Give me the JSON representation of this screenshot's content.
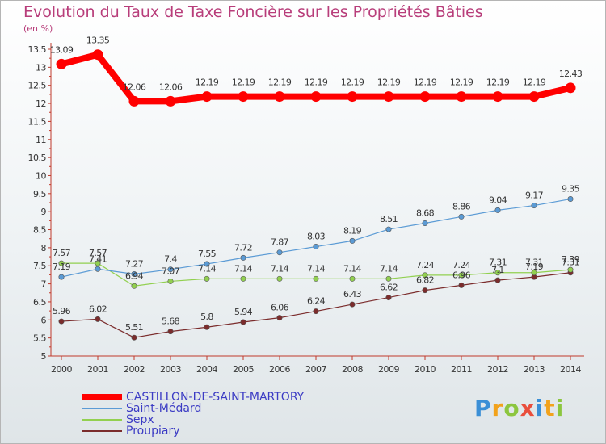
{
  "chart_data": {
    "type": "line",
    "title": "Evolution du Taux de Taxe Foncière sur les Propriétés Bâties",
    "ylabel": "(en %)",
    "xlabel": "",
    "x": [
      "2000",
      "2001",
      "2002",
      "2003",
      "2004",
      "2005",
      "2006",
      "2007",
      "2008",
      "2009",
      "2010",
      "2011",
      "2012",
      "2013",
      "2014"
    ],
    "ylim": [
      5,
      13.5
    ],
    "yticks": [
      "5",
      "5.5",
      "6",
      "6.5",
      "7",
      "7.5",
      "8",
      "8.5",
      "9",
      "9.5",
      "10",
      "10.5",
      "11",
      "11.5",
      "12",
      "12.5",
      "13",
      "13.5"
    ],
    "grid": false,
    "legend_position": "bottom-left",
    "series": [
      {
        "name": "CASTILLON-DE-SAINT-MARTORY",
        "color": "#ff0000",
        "values": [
          13.09,
          13.35,
          12.06,
          12.06,
          12.19,
          12.19,
          12.19,
          12.19,
          12.19,
          12.19,
          12.19,
          12.19,
          12.19,
          12.19,
          12.43
        ],
        "labels": [
          "13.09",
          "13.35",
          "12.06",
          "12.06",
          "12.19",
          "12.19",
          "12.19",
          "12.19",
          "12.19",
          "12.19",
          "12.19",
          "12.19",
          "12.19",
          "12.19",
          "12.43"
        ]
      },
      {
        "name": "Saint-Médard",
        "color": "#5b9bd5",
        "values": [
          7.19,
          7.41,
          7.27,
          7.4,
          7.55,
          7.72,
          7.87,
          8.03,
          8.19,
          8.51,
          8.68,
          8.86,
          9.04,
          9.17,
          9.35
        ],
        "labels": [
          "7.19",
          "7.41",
          "7.27",
          "7.4",
          "7.55",
          "7.72",
          "7.87",
          "8.03",
          "8.19",
          "8.51",
          "8.68",
          "8.86",
          "9.04",
          "9.17",
          "9.35"
        ]
      },
      {
        "name": "Sepx",
        "color": "#92d050",
        "values": [
          7.57,
          7.57,
          6.94,
          7.07,
          7.14,
          7.14,
          7.14,
          7.14,
          7.14,
          7.14,
          7.24,
          7.24,
          7.31,
          7.31,
          7.39
        ],
        "labels": [
          "7.57",
          "7.57",
          "6.94",
          "7.07",
          "7.14",
          "7.14",
          "7.14",
          "7.14",
          "7.14",
          "7.14",
          "7.24",
          "7.24",
          "7.31",
          "7.31",
          "7.39"
        ]
      },
      {
        "name": "Proupiary",
        "color": "#7b2c2c",
        "values": [
          5.96,
          6.02,
          5.51,
          5.68,
          5.8,
          5.94,
          6.06,
          6.24,
          6.43,
          6.62,
          6.82,
          6.96,
          7.1,
          7.19,
          7.31
        ],
        "labels": [
          "5.96",
          "6.02",
          "5.51",
          "5.68",
          "5.8",
          "5.94",
          "6.06",
          "6.24",
          "6.43",
          "6.62",
          "6.82",
          "6.96",
          "7.1",
          "7.19",
          "7.31"
        ]
      }
    ]
  },
  "logo": {
    "letters": [
      "P",
      "r",
      "o",
      "x",
      "i",
      "t",
      "i"
    ],
    "colors": [
      "#3b8fd6",
      "#f2a21b",
      "#8cc63f",
      "#e94e3c",
      "#3b8fd6",
      "#f2a21b",
      "#8cc63f"
    ]
  }
}
